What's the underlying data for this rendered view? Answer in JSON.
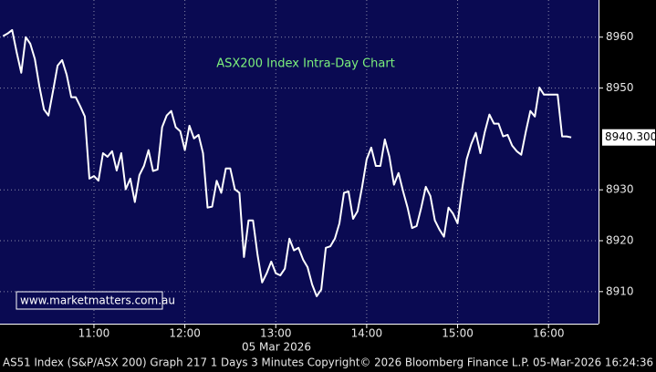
{
  "chart_data": {
    "type": "line",
    "title": "ASX200 Index Intra-Day Chart",
    "watermark": "www.marketmatters.com.au",
    "date_label": "05 Mar 2026",
    "footer": "AS51 Index (S&P/ASX 200) Graph 217 1 Days 3 Minutes Copyright© 2026 Bloomberg Finance L.P. 05-Mar-2026 16:24:36",
    "x": [
      "10:00",
      "10:03",
      "10:06",
      "10:09",
      "10:12",
      "10:15",
      "10:18",
      "10:21",
      "10:24",
      "10:27",
      "10:30",
      "10:33",
      "10:36",
      "10:39",
      "10:42",
      "10:45",
      "10:48",
      "10:51",
      "10:54",
      "10:57",
      "11:00",
      "11:03",
      "11:06",
      "11:09",
      "11:12",
      "11:15",
      "11:18",
      "11:21",
      "11:24",
      "11:27",
      "11:30",
      "11:33",
      "11:36",
      "11:39",
      "11:42",
      "11:45",
      "11:48",
      "11:51",
      "11:54",
      "11:57",
      "12:00",
      "12:03",
      "12:06",
      "12:09",
      "12:12",
      "12:15",
      "12:18",
      "12:21",
      "12:24",
      "12:27",
      "12:30",
      "12:33",
      "12:36",
      "12:39",
      "12:42",
      "12:45",
      "12:48",
      "12:51",
      "12:54",
      "12:57",
      "13:00",
      "13:03",
      "13:06",
      "13:09",
      "13:12",
      "13:15",
      "13:18",
      "13:21",
      "13:24",
      "13:27",
      "13:30",
      "13:33",
      "13:36",
      "13:39",
      "13:42",
      "13:45",
      "13:48",
      "13:51",
      "13:54",
      "13:57",
      "14:00",
      "14:03",
      "14:06",
      "14:09",
      "14:12",
      "14:15",
      "14:18",
      "14:21",
      "14:24",
      "14:27",
      "14:30",
      "14:33",
      "14:36",
      "14:39",
      "14:42",
      "14:45",
      "14:48",
      "14:51",
      "14:54",
      "14:57",
      "15:00",
      "15:03",
      "15:06",
      "15:09",
      "15:12",
      "15:15",
      "15:18",
      "15:21",
      "15:24",
      "15:27",
      "15:30",
      "15:33",
      "15:36",
      "15:39",
      "15:42",
      "15:45",
      "15:48",
      "15:51",
      "15:54",
      "15:57",
      "16:00",
      "16:03",
      "16:06",
      "16:09",
      "16:12",
      "16:15"
    ],
    "series": [
      {
        "color": "#ffffff",
        "values": [
          8960.2,
          8960.7,
          8961.4,
          8957,
          8953,
          8960,
          8958.7,
          8955.7,
          8950.3,
          8945.8,
          8944.6,
          8949.4,
          8954.4,
          8955.5,
          8952.6,
          8948.2,
          8948.2,
          8946.4,
          8944.4,
          8932.2,
          8932.7,
          8931.8,
          8937.2,
          8936.5,
          8937.6,
          8933.8,
          8937.2,
          8930.1,
          8932.2,
          8927.6,
          8932.9,
          8934.7,
          8937.8,
          8933.7,
          8934,
          8942.3,
          8944.6,
          8945.5,
          8942.3,
          8941.5,
          8937.8,
          8942.6,
          8940.1,
          8940.8,
          8937.2,
          8926.5,
          8926.7,
          8931.8,
          8929.4,
          8934.2,
          8934.2,
          8930.1,
          8929.4,
          8916.8,
          8924,
          8924,
          8917.2,
          8911.8,
          8913.6,
          8915.9,
          8913.6,
          8913.2,
          8914.5,
          8920.4,
          8918.1,
          8918.6,
          8916.3,
          8914.8,
          8911.4,
          8909.1,
          8910.4,
          8918.6,
          8918.9,
          8920.4,
          8923.4,
          8929.4,
          8929.7,
          8924.3,
          8925.8,
          8930.6,
          8936,
          8938.3,
          8934.7,
          8934.7,
          8939.9,
          8936.5,
          8931,
          8933.3,
          8929.7,
          8926.5,
          8922.5,
          8922.9,
          8926.5,
          8930.6,
          8928.8,
          8924,
          8922.2,
          8920.8,
          8926.5,
          8925.3,
          8923.4,
          8930.1,
          8936,
          8939,
          8941.2,
          8937.2,
          8941.4,
          8944.8,
          8943,
          8943,
          8940.5,
          8940.8,
          8938.7,
          8937.6,
          8936.9,
          8941.4,
          8945.5,
          8944.4,
          8950.1,
          8948.7,
          8948.7,
          8948.7,
          8948.7,
          8940.5,
          8940.5,
          8940.3
        ]
      }
    ],
    "current_price": {
      "value": 8940.3,
      "label": "8940.300"
    },
    "xlim": [
      "09:58",
      "16:33"
    ],
    "xticks": [
      "11:00",
      "12:00",
      "13:00",
      "14:00",
      "15:00",
      "16:00"
    ],
    "ylim": [
      8903.7,
      8967.3
    ],
    "yticks": [
      8910,
      8920,
      8930,
      8950,
      8960
    ],
    "grid": true
  }
}
